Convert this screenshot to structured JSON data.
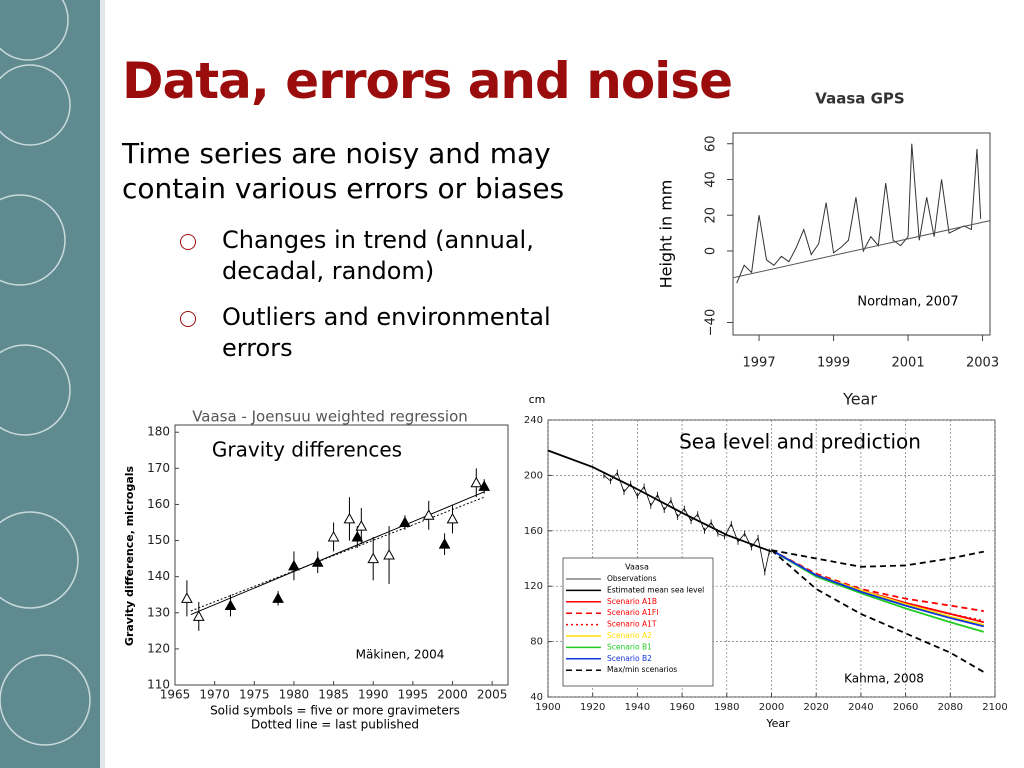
{
  "slide": {
    "title": "Data, errors and noise",
    "body": "Time series are noisy and may contain various errors or biases",
    "bullets": [
      "Changes in trend (annual, decadal, random)",
      "Outliers and environmental errors"
    ]
  },
  "chart_data": [
    {
      "type": "line",
      "title": "Vaasa GPS",
      "ylabel": "Height in mm",
      "xlabel": "Year",
      "annotation": "Nordman, 2007",
      "xlim": [
        1996.3,
        2003.2
      ],
      "ylim": [
        -47,
        66
      ],
      "xticks": [
        1997,
        1999,
        2001,
        2003
      ],
      "yticks": [
        {
          "value": -40,
          "label": "−40"
        },
        0,
        20,
        40,
        60
      ],
      "grid": false,
      "series": [
        {
          "color": "#333333",
          "x": [
            1996.4,
            1996.6,
            1996.8,
            1997.0,
            1997.2,
            1997.4,
            1997.6,
            1997.8,
            1998.0,
            1998.2,
            1998.4,
            1998.6,
            1998.8,
            1999.0,
            1999.2,
            1999.4,
            1999.6,
            1999.8,
            2000.0,
            2000.2,
            2000.4,
            2000.6,
            2000.8,
            2001.0,
            2001.1,
            2001.3,
            2001.5,
            2001.7,
            2001.9,
            2002.1,
            2002.3,
            2002.5,
            2002.7,
            2002.85,
            2002.95
          ],
          "values": [
            -18,
            -8,
            -12,
            20,
            -5,
            -8,
            -3,
            -6,
            2,
            12,
            -2,
            4,
            27,
            -1,
            2,
            6,
            30,
            0,
            8,
            3,
            38,
            6,
            3,
            8,
            60,
            6,
            30,
            8,
            40,
            10,
            12,
            14,
            12,
            57,
            18
          ]
        }
      ],
      "trend": {
        "x": [
          1996.3,
          2003.2
        ],
        "values": [
          -15,
          17
        ]
      }
    },
    {
      "type": "scatter",
      "title": "Vaasa - Joensuu weighted regression",
      "ylabel": "Gravity difference, microgals",
      "xlabel": [
        "Solid symbols = five or more gravimeters",
        "Dotted line = last published"
      ],
      "annotations": [
        "Gravity differences",
        "Mäkinen, 2004"
      ],
      "xlim": [
        1965,
        2007
      ],
      "ylim": [
        110,
        182
      ],
      "xticks": [
        1965,
        1970,
        1975,
        1980,
        1985,
        1990,
        1995,
        2000,
        2005
      ],
      "yticks": [
        110,
        120,
        130,
        140,
        150,
        160,
        170,
        180
      ],
      "grid": false,
      "color": "#000000",
      "x": [
        1966.5,
        1968,
        1972,
        1978,
        1980,
        1983,
        1985,
        1987,
        1988,
        1988.5,
        1990,
        1992,
        1994,
        1997,
        1999,
        2000,
        2003,
        2004
      ],
      "values": [
        134,
        129,
        132,
        134,
        143,
        144,
        151,
        156,
        151,
        154,
        145,
        146,
        155,
        157,
        149,
        156,
        166,
        165
      ],
      "errors": [
        5,
        4,
        3,
        2,
        4,
        3,
        4,
        6,
        3,
        5,
        6,
        8,
        2,
        4,
        3,
        4,
        4,
        2
      ],
      "filled": [
        false,
        false,
        true,
        true,
        true,
        true,
        false,
        false,
        true,
        false,
        false,
        false,
        true,
        false,
        true,
        false,
        false,
        true
      ],
      "fit": {
        "x": [
          1967,
          2004
        ],
        "values": [
          129.5,
          163.5
        ]
      },
      "published": {
        "x": [
          1967,
          2004
        ],
        "values": [
          130.5,
          162
        ]
      }
    },
    {
      "type": "line",
      "ylabel": "cm",
      "xlabel": "Year",
      "annotations": [
        "Sea level and prediction",
        "Kahma, 2008"
      ],
      "xlim": [
        1900,
        2100
      ],
      "ylim": [
        40,
        240
      ],
      "xticks": [
        1900,
        1920,
        1940,
        1960,
        1980,
        2000,
        2020,
        2040,
        2060,
        2080,
        2100
      ],
      "yticks": [
        40,
        80,
        120,
        160,
        200,
        240
      ],
      "grid": true,
      "legend_title": "Vaasa",
      "legend": "lower left",
      "series": [
        {
          "name": "Observations",
          "color": "#000000",
          "markers": true,
          "x": [
            1925,
            1928,
            1931,
            1934,
            1937,
            1940,
            1943,
            1946,
            1949,
            1952,
            1955,
            1958,
            1961,
            1964,
            1967,
            1970,
            1973,
            1976,
            1979,
            1982,
            1985,
            1988,
            1991,
            1994,
            1997,
            1999
          ],
          "values": [
            200,
            196,
            202,
            188,
            194,
            185,
            192,
            178,
            186,
            175,
            182,
            170,
            176,
            167,
            172,
            160,
            166,
            158,
            156,
            165,
            152,
            158,
            148,
            155,
            130,
            145
          ]
        },
        {
          "name": "Estimated mean sea level",
          "color": "#000000",
          "x": [
            1900,
            1920,
            1940,
            1960,
            1980,
            2000
          ],
          "values": [
            218,
            206,
            190,
            173,
            157,
            145
          ]
        },
        {
          "name": "Scenario A1B",
          "color": "#ff0000",
          "x": [
            2000,
            2020,
            2040,
            2060,
            2080,
            2095
          ],
          "values": [
            146,
            128,
            117,
            108,
            100,
            94
          ]
        },
        {
          "name": "Scenario A1FI",
          "color": "#ff0000",
          "style": "dashed",
          "x": [
            2000,
            2020,
            2040,
            2060,
            2080,
            2095
          ],
          "values": [
            146,
            129,
            118,
            111,
            106,
            102
          ]
        },
        {
          "name": "Scenario A1T",
          "color": "#ff0000",
          "style": "dotted",
          "x": [
            2000,
            2020,
            2040,
            2060,
            2080,
            2095
          ],
          "values": [
            146,
            128,
            117,
            108,
            100,
            95
          ]
        },
        {
          "name": "Scenario A2",
          "color": "#ffdd00",
          "x": [
            2000,
            2020,
            2040,
            2060,
            2080,
            2095
          ],
          "values": [
            146,
            128,
            117,
            107,
            98,
            92
          ]
        },
        {
          "name": "Scenario B1",
          "color": "#22cc22",
          "x": [
            2000,
            2020,
            2040,
            2060,
            2080,
            2095
          ],
          "values": [
            146,
            127,
            115,
            104,
            94,
            87
          ]
        },
        {
          "name": "Scenario B2",
          "color": "#1133dd",
          "x": [
            2000,
            2020,
            2040,
            2060,
            2080,
            2095
          ],
          "values": [
            146,
            128,
            116,
            106,
            97,
            91
          ]
        },
        {
          "name": "Max/min scenarios",
          "color": "#000000",
          "style": "dashed",
          "x": [
            2000,
            2020,
            2040,
            2060,
            2080,
            2095
          ],
          "values": [
            146,
            140,
            134,
            135,
            140,
            145
          ],
          "min": [
            146,
            118,
            100,
            86,
            72,
            58
          ]
        }
      ]
    }
  ]
}
